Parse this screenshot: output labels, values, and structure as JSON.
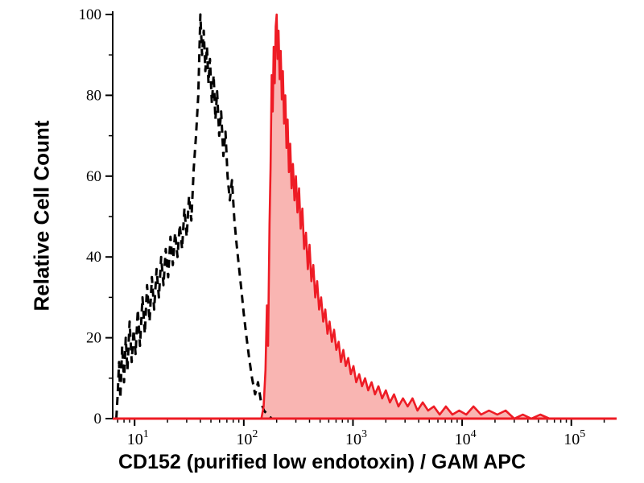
{
  "chart_data": {
    "type": "area",
    "subtype": "flow-cytometry-histogram-overlay",
    "title": "",
    "xlabel": "CD152 (purified low endotoxin) / GAM APC",
    "ylabel": "Relative Cell Count",
    "x_scale": "log10",
    "xlim": [
      6.3,
      260000
    ],
    "ylim": [
      0,
      100
    ],
    "grid": false,
    "legend": "none",
    "axis_color": "#000000",
    "baseline_color": "#ee1c25",
    "x_ticks": [
      {
        "base": "10",
        "exp": "1",
        "value": 10
      },
      {
        "base": "10",
        "exp": "2",
        "value": 100
      },
      {
        "base": "10",
        "exp": "3",
        "value": 1000
      },
      {
        "base": "10",
        "exp": "4",
        "value": 10000
      },
      {
        "base": "10",
        "exp": "5",
        "value": 100000
      }
    ],
    "y_ticks": [
      0,
      20,
      40,
      60,
      80,
      100
    ],
    "y_minor_ticks": [
      10,
      30,
      50,
      70,
      90
    ],
    "series": [
      {
        "name": "control (dashed black, unfilled)",
        "line_style": "dashed",
        "color": "#000000",
        "stroke_width": 3,
        "fill": "none",
        "points": [
          [
            6.8,
            0
          ],
          [
            7.0,
            6
          ],
          [
            7.2,
            14
          ],
          [
            7.4,
            5
          ],
          [
            7.7,
            18
          ],
          [
            8.0,
            9
          ],
          [
            8.3,
            20
          ],
          [
            8.6,
            12
          ],
          [
            9.0,
            24
          ],
          [
            9.4,
            14
          ],
          [
            9.8,
            22
          ],
          [
            10.2,
            16
          ],
          [
            10.7,
            27
          ],
          [
            11.2,
            18
          ],
          [
            11.8,
            30
          ],
          [
            12.4,
            21
          ],
          [
            13.0,
            33
          ],
          [
            13.7,
            24
          ],
          [
            14.4,
            35
          ],
          [
            15.1,
            27
          ],
          [
            15.9,
            37
          ],
          [
            16.7,
            30
          ],
          [
            17.5,
            40
          ],
          [
            18.4,
            33
          ],
          [
            19.3,
            42
          ],
          [
            20.3,
            35
          ],
          [
            21.3,
            45
          ],
          [
            22.4,
            38
          ],
          [
            23.5,
            46
          ],
          [
            24.7,
            40
          ],
          [
            25.9,
            48
          ],
          [
            27.2,
            42
          ],
          [
            28.6,
            52
          ],
          [
            30.0,
            45
          ],
          [
            31.5,
            55
          ],
          [
            33.1,
            49
          ],
          [
            34.8,
            62
          ],
          [
            36.5,
            70
          ],
          [
            38.3,
            80
          ],
          [
            40.0,
            100
          ],
          [
            41.5,
            90
          ],
          [
            43.0,
            96
          ],
          [
            44.5,
            86
          ],
          [
            46.0,
            92
          ],
          [
            47.5,
            83
          ],
          [
            49.0,
            89
          ],
          [
            51.0,
            78
          ],
          [
            53.0,
            85
          ],
          [
            55.0,
            74
          ],
          [
            57.0,
            81
          ],
          [
            59.5,
            70
          ],
          [
            62.0,
            76
          ],
          [
            65.0,
            65
          ],
          [
            68.0,
            71
          ],
          [
            71.0,
            60
          ],
          [
            74.5,
            54
          ],
          [
            78.0,
            59
          ],
          [
            82.0,
            49
          ],
          [
            86.0,
            43
          ],
          [
            90.0,
            38
          ],
          [
            95.0,
            32
          ],
          [
            100,
            26
          ],
          [
            106,
            20
          ],
          [
            112,
            15
          ],
          [
            119,
            10
          ],
          [
            127,
            6
          ],
          [
            135,
            9
          ],
          [
            144,
            4
          ],
          [
            153,
            2
          ],
          [
            165,
            1
          ],
          [
            180,
            0
          ]
        ]
      },
      {
        "name": "stained sample (solid red, filled)",
        "line_style": "solid",
        "color": "#ee1c25",
        "stroke_width": 2.6,
        "fill": "#f8a8a5",
        "fill_opacity": 0.85,
        "points": [
          [
            145,
            0
          ],
          [
            152,
            3
          ],
          [
            158,
            12
          ],
          [
            163,
            28
          ],
          [
            167,
            18
          ],
          [
            172,
            48
          ],
          [
            176,
            62
          ],
          [
            180,
            85
          ],
          [
            184,
            76
          ],
          [
            188,
            92
          ],
          [
            192,
            83
          ],
          [
            196,
            97
          ],
          [
            200,
            100
          ],
          [
            204,
            89
          ],
          [
            208,
            96
          ],
          [
            213,
            84
          ],
          [
            218,
            91
          ],
          [
            223,
            79
          ],
          [
            228,
            86
          ],
          [
            234,
            73
          ],
          [
            240,
            80
          ],
          [
            246,
            67
          ],
          [
            252,
            74
          ],
          [
            259,
            61
          ],
          [
            266,
            68
          ],
          [
            274,
            57
          ],
          [
            282,
            63
          ],
          [
            291,
            54
          ],
          [
            300,
            60
          ],
          [
            310,
            51
          ],
          [
            321,
            57
          ],
          [
            332,
            47
          ],
          [
            344,
            52
          ],
          [
            357,
            42
          ],
          [
            371,
            46
          ],
          [
            386,
            37
          ],
          [
            400,
            43
          ],
          [
            416,
            34
          ],
          [
            433,
            38
          ],
          [
            451,
            30
          ],
          [
            470,
            34
          ],
          [
            490,
            27
          ],
          [
            511,
            30
          ],
          [
            534,
            24
          ],
          [
            558,
            27
          ],
          [
            584,
            21
          ],
          [
            611,
            24
          ],
          [
            640,
            19
          ],
          [
            671,
            22
          ],
          [
            704,
            17
          ],
          [
            739,
            19
          ],
          [
            776,
            14
          ],
          [
            816,
            17
          ],
          [
            859,
            13
          ],
          [
            905,
            15
          ],
          [
            955,
            11
          ],
          [
            1010,
            13
          ],
          [
            1070,
            9
          ],
          [
            1140,
            11
          ],
          [
            1210,
            8
          ],
          [
            1290,
            10
          ],
          [
            1380,
            7
          ],
          [
            1480,
            9
          ],
          [
            1590,
            6
          ],
          [
            1710,
            8
          ],
          [
            1850,
            5
          ],
          [
            2000,
            7
          ],
          [
            2180,
            4
          ],
          [
            2380,
            6
          ],
          [
            2610,
            3
          ],
          [
            2870,
            5
          ],
          [
            3170,
            3
          ],
          [
            3510,
            5
          ],
          [
            3900,
            2
          ],
          [
            4350,
            4
          ],
          [
            4880,
            2
          ],
          [
            5500,
            3
          ],
          [
            6230,
            1
          ],
          [
            7100,
            3
          ],
          [
            8150,
            1
          ],
          [
            9400,
            2
          ],
          [
            10900,
            1
          ],
          [
            12700,
            3
          ],
          [
            14900,
            1
          ],
          [
            17600,
            2
          ],
          [
            21000,
            1
          ],
          [
            25000,
            2
          ],
          [
            30000,
            0
          ],
          [
            36000,
            1
          ],
          [
            43000,
            0
          ],
          [
            52000,
            1
          ],
          [
            63000,
            0
          ],
          [
            260000,
            0
          ]
        ]
      }
    ]
  }
}
